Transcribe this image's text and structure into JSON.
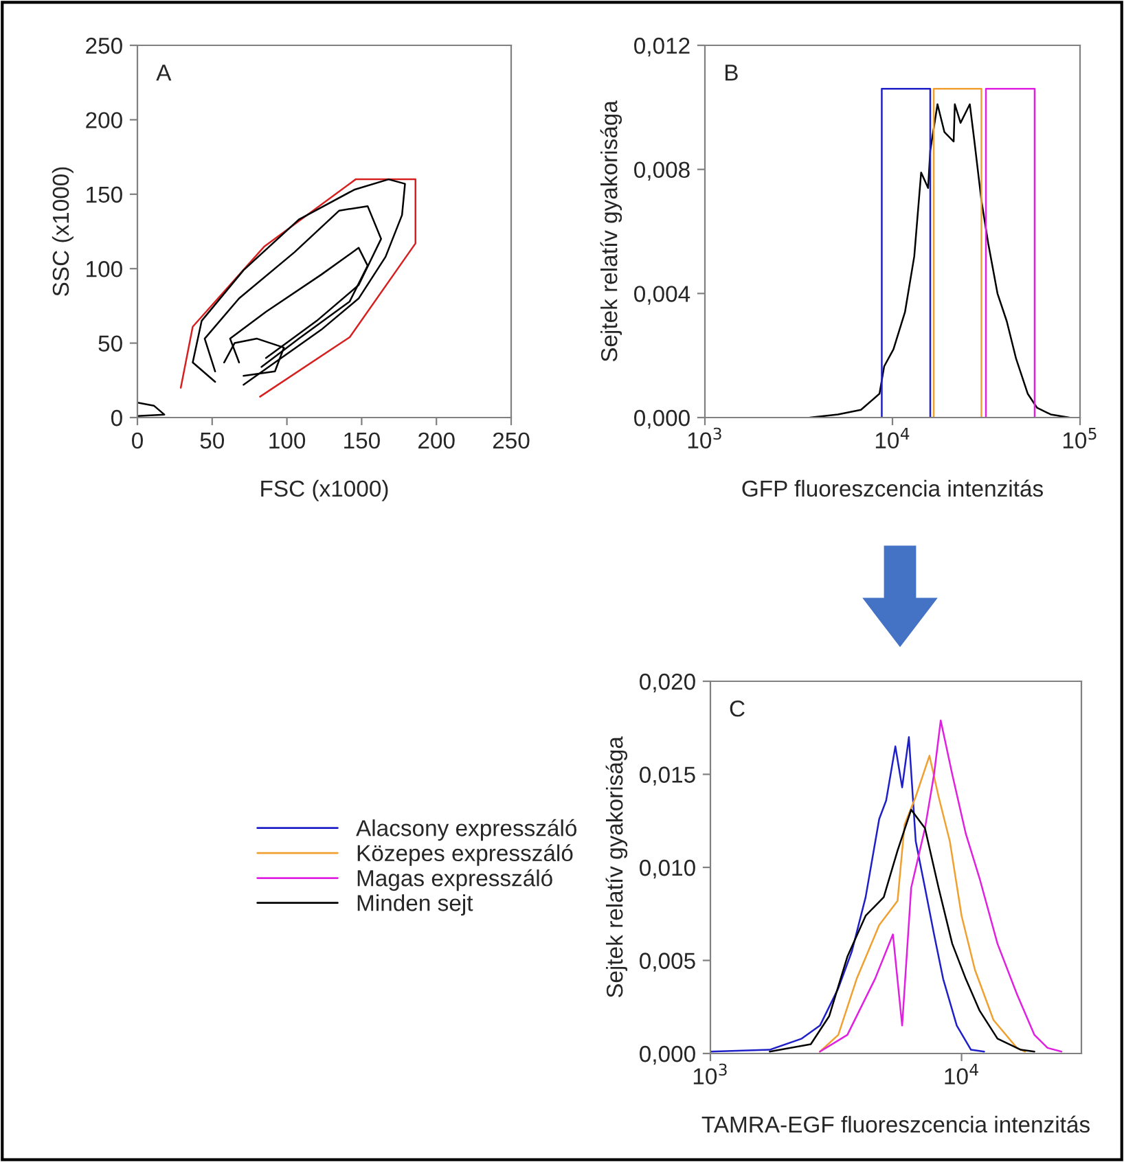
{
  "chart_data": [
    {
      "type": "line",
      "title": null,
      "xlabel": "FSC (x1000)",
      "ylabel": "SSC (x1000)",
      "annotations": [
        "A"
      ],
      "xlim": [
        0,
        250
      ],
      "ylim": [
        0,
        250
      ],
      "xticks": [
        0,
        50,
        100,
        150,
        200,
        250
      ],
      "yticks": [
        0,
        50,
        100,
        150,
        200,
        250
      ],
      "grid": false,
      "legend": false,
      "series": [
        {
          "color": "#d62020",
          "x": [
            29,
            37,
            85,
            146,
            186,
            186,
            142,
            82
          ],
          "values": [
            20,
            61,
            115,
            160,
            160,
            117,
            54,
            14
          ]
        },
        {
          "color": "#000000",
          "x": [
            52,
            37,
            43,
            71,
            108,
            145,
            168,
            179,
            177,
            166,
            148,
            123,
            92,
            71
          ],
          "values": [
            24,
            37,
            65,
            99,
            133,
            153,
            160,
            157,
            136,
            108,
            80,
            59,
            37,
            22
          ]
        },
        {
          "color": "#000000",
          "x": [
            52,
            45,
            68,
            105,
            135,
            154,
            163,
            148,
            120,
            86
          ],
          "values": [
            31,
            53,
            80,
            111,
            139,
            142,
            120,
            89,
            65,
            40
          ]
        },
        {
          "color": "#000000",
          "x": [
            68,
            62,
            86,
            123,
            148,
            154,
            142,
            108,
            83
          ],
          "values": [
            37,
            53,
            71,
            96,
            114,
            102,
            78,
            53,
            34
          ]
        },
        {
          "color": "#000000",
          "x": [
            58,
            65,
            80,
            98,
            92,
            71
          ],
          "values": [
            37,
            50,
            53,
            47,
            31,
            28
          ]
        },
        {
          "color": "#000000",
          "x": [
            0,
            11,
            18,
            0
          ],
          "values": [
            10,
            8,
            2,
            1
          ]
        }
      ]
    },
    {
      "type": "line",
      "xlabel": "GFP fluoreszcencia intenzitás",
      "ylabel": "Sejtek relatív gyakorisága",
      "annotations": [
        "B"
      ],
      "log": "x",
      "xlim": [
        1000,
        100000
      ],
      "ylim": [
        0,
        0.012
      ],
      "xticks": [
        {
          "value": 1000,
          "label": "10$^{3}$"
        },
        {
          "value": 10000,
          "label": "10$^{4}$"
        },
        {
          "value": 100000,
          "label": "10$^{5}$"
        }
      ],
      "yticks": [
        {
          "value": 0,
          "label": "0,000"
        },
        {
          "value": 0.004,
          "label": "0,004"
        },
        {
          "value": 0.008,
          "label": "0,008"
        },
        {
          "value": 0.012,
          "label": "0,012"
        }
      ],
      "grid": false,
      "legend": false,
      "series": [
        {
          "color": "#000000",
          "x": [
            3630,
            5120,
            6790,
            8530,
            9030,
            10120,
            11660,
            13070,
            14220,
            15490,
            15900,
            17380,
            18930,
            21200,
            21500,
            23070,
            25850,
            27350,
            29800,
            32430,
            36300,
            40700,
            45600,
            52600,
            58900,
            69800,
            87700
          ],
          "values": [
            0,
            0.0001,
            0.00025,
            0.00077,
            0.00165,
            0.0022,
            0.0034,
            0.0052,
            0.0079,
            0.0074,
            0.0086,
            0.0101,
            0.0092,
            0.0089,
            0.0101,
            0.0095,
            0.0101,
            0.0089,
            0.007,
            0.0056,
            0.004,
            0.0031,
            0.0019,
            0.00077,
            0.00032,
            0.0001,
            0
          ]
        },
        {
          "color": "#1f1fc8",
          "x": [
            8770,
            8770,
            15900,
            15900
          ],
          "values": [
            0,
            0.0106,
            0.0106,
            0
          ]
        },
        {
          "color": "#f0a030",
          "x": [
            16600,
            16600,
            29800,
            29800
          ],
          "values": [
            0,
            0.0106,
            0.0106,
            0
          ]
        },
        {
          "color": "#e020e0",
          "x": [
            31500,
            31500,
            57300,
            57300
          ],
          "values": [
            0,
            0.0106,
            0.0106,
            0
          ]
        }
      ]
    },
    {
      "type": "line",
      "xlabel": "TAMRA-EGF fluoreszcencia intenzitás",
      "ylabel": "Sejtek relatív gyakorisága",
      "annotations": [
        "C"
      ],
      "log": "x",
      "xlim": [
        1000,
        30000
      ],
      "ylim": [
        0,
        0.02
      ],
      "xticks": [
        {
          "value": 1000,
          "label": "10$^{3}$"
        },
        {
          "value": 10000,
          "label": "10$^{4}$"
        }
      ],
      "yticks": [
        {
          "value": 0,
          "label": "0,000"
        },
        {
          "value": 0.005,
          "label": "0,005"
        },
        {
          "value": 0.01,
          "label": "0,010"
        },
        {
          "value": 0.015,
          "label": "0,015"
        },
        {
          "value": 0.02,
          "label": "0,020"
        }
      ],
      "grid": false,
      "legend": "left",
      "series": [
        {
          "name": "Alacsony expresszáló",
          "color": "#1f1fc8",
          "x": [
            1000,
            1723,
            2310,
            2730,
            3230,
            3660,
            4150,
            4700,
            5010,
            5450,
            5800,
            6170,
            6570,
            7150,
            7770,
            8450,
            9570,
            10900,
            12300
          ],
          "values": [
            0.0001,
            0.0002,
            0.0008,
            0.0015,
            0.0035,
            0.0055,
            0.0084,
            0.0126,
            0.0136,
            0.0165,
            0.0143,
            0.017,
            0.0114,
            0.0089,
            0.0064,
            0.004,
            0.0015,
            0.0002,
            0.0001
          ]
        },
        {
          "name": "Közepes expresszáló",
          "color": "#f0a030",
          "x": [
            2730,
            3230,
            3820,
            4700,
            5560,
            5930,
            6570,
            7450,
            8100,
            8980,
            10000,
            11300,
            13400,
            16600,
            17900
          ],
          "values": [
            0.0001,
            0.001,
            0.004,
            0.0069,
            0.0082,
            0.0123,
            0.0138,
            0.016,
            0.0138,
            0.0114,
            0.0074,
            0.0045,
            0.0018,
            0.0003,
            0.0001
          ]
        },
        {
          "name": "Magas expresszáló",
          "color": "#e020e0",
          "x": [
            2730,
            3510,
            4520,
            5330,
            5800,
            6300,
            7150,
            7770,
            8260,
            9180,
            10400,
            11800,
            13900,
            16600,
            19500,
            22000,
            25000
          ],
          "values": [
            0.0001,
            0.001,
            0.004,
            0.0064,
            0.0015,
            0.0089,
            0.0121,
            0.015,
            0.0179,
            0.015,
            0.0118,
            0.0094,
            0.0059,
            0.0032,
            0.001,
            0.0003,
            0.0001
          ]
        },
        {
          "name": "Minden sejt",
          "color": "#000000",
          "x": [
            1723,
            2510,
            2970,
            3510,
            4150,
            4900,
            5560,
            6300,
            7150,
            8100,
            9180,
            10400,
            11800,
            13900,
            17200,
            19500
          ],
          "values": [
            0.0001,
            0.0005,
            0.002,
            0.0052,
            0.0074,
            0.0084,
            0.0109,
            0.0131,
            0.0121,
            0.0089,
            0.0059,
            0.004,
            0.0023,
            0.0008,
            0.0002,
            0.0001
          ]
        }
      ]
    }
  ]
}
